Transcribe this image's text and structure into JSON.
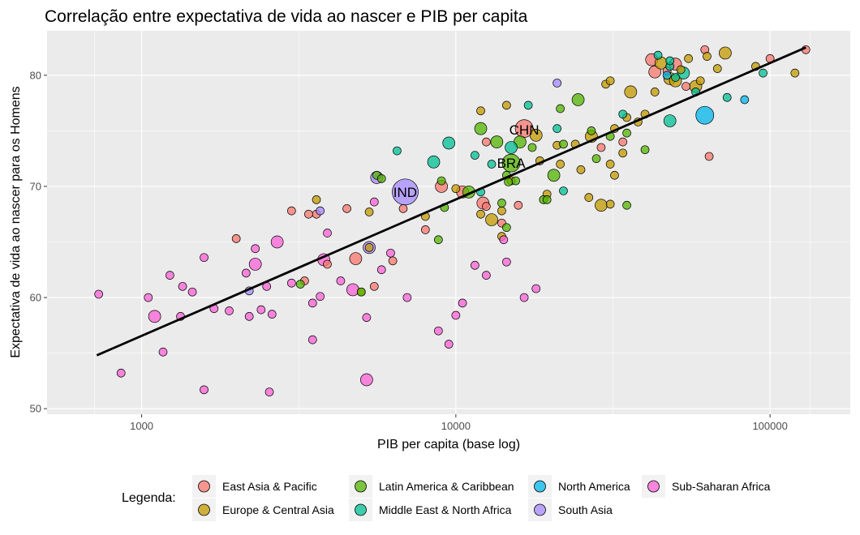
{
  "chart_data": {
    "type": "scatter",
    "title": "Correlação entre expectativa de vida ao nascer e PIB per capita",
    "xlabel": "PIB per capita (base log)",
    "ylabel": "Expectativa de vida ao nascer para os Homens",
    "x_scale": "log10",
    "xlim": [
      500,
      180000
    ],
    "ylim": [
      49.5,
      84
    ],
    "x_ticks": [
      1000,
      10000,
      100000
    ],
    "x_tick_labels": [
      "1000",
      "10000",
      "100000"
    ],
    "y_ticks": [
      50,
      60,
      70,
      80
    ],
    "y_tick_labels": [
      "50",
      "60",
      "70",
      "80"
    ],
    "grid": true,
    "legend": {
      "title": "Legenda:",
      "position": "bottom",
      "entries": [
        {
          "name": "East Asia & Pacific",
          "color": "#F8766D"
        },
        {
          "name": "Europe & Central Asia",
          "color": "#C49A00"
        },
        {
          "name": "Latin America & Caribbean",
          "color": "#53B400"
        },
        {
          "name": "Middle East & North Africa",
          "color": "#00C094"
        },
        {
          "name": "North America",
          "color": "#00B6EB"
        },
        {
          "name": "South Asia",
          "color": "#A58AFF"
        },
        {
          "name": "Sub-Saharan Africa",
          "color": "#FB61D7"
        }
      ]
    },
    "trend_line": {
      "x": [
        720,
        130000
      ],
      "y": [
        54.8,
        82.5
      ]
    },
    "labels": [
      {
        "text": "CHN",
        "x": 16500,
        "y": 75.1
      },
      {
        "text": "BRA",
        "x": 15000,
        "y": 72.1
      },
      {
        "text": "IND",
        "x": 6900,
        "y": 69.5
      }
    ],
    "series": [
      {
        "name": "East Asia & Pacific",
        "points": [
          [
            16500,
            75.2,
            3
          ],
          [
            12200,
            68.5,
            2
          ],
          [
            9000,
            70,
            2
          ],
          [
            10500,
            69.5,
            2
          ],
          [
            4800,
            63.5,
            2
          ],
          [
            4500,
            68,
            1
          ],
          [
            3900,
            63,
            1
          ],
          [
            3600,
            67.5,
            1
          ],
          [
            2000,
            65.3,
            1
          ],
          [
            3400,
            67.5,
            1
          ],
          [
            3300,
            61.5,
            1
          ],
          [
            3000,
            67.8,
            1
          ],
          [
            12500,
            74,
            1
          ],
          [
            5500,
            61,
            1
          ],
          [
            6300,
            63.3,
            1
          ],
          [
            6800,
            68,
            1
          ],
          [
            29000,
            73.5,
            1
          ],
          [
            34000,
            74,
            1
          ],
          [
            42000,
            81.4,
            2
          ],
          [
            43000,
            80.3,
            2
          ],
          [
            50000,
            81,
            2
          ],
          [
            62000,
            82.3,
            1
          ],
          [
            64000,
            72.7,
            1
          ],
          [
            100000,
            81.5,
            1
          ],
          [
            130000,
            82.3,
            1
          ],
          [
            54000,
            79,
            1
          ],
          [
            47000,
            80.4,
            1
          ],
          [
            15800,
            68.3,
            1
          ],
          [
            12500,
            68.2,
            1
          ],
          [
            14000,
            66.7,
            1
          ],
          [
            8000,
            66.1,
            1
          ]
        ]
      },
      {
        "name": "Europe & Central Asia",
        "points": [
          [
            18000,
            74.6,
            2
          ],
          [
            27000,
            74.5,
            2
          ],
          [
            29000,
            68.3,
            2
          ],
          [
            32000,
            75.2,
            1
          ],
          [
            34000,
            73,
            1
          ],
          [
            36000,
            78.5,
            2
          ],
          [
            43000,
            78.5,
            1
          ],
          [
            45000,
            81.1,
            2
          ],
          [
            48000,
            79.7,
            2
          ],
          [
            50000,
            79.5,
            2
          ],
          [
            52000,
            80.5,
            1
          ],
          [
            55000,
            81.5,
            1
          ],
          [
            58000,
            79,
            2
          ],
          [
            60000,
            79.5,
            1
          ],
          [
            63000,
            81.7,
            1
          ],
          [
            68000,
            80.6,
            1
          ],
          [
            72000,
            82,
            2
          ],
          [
            90000,
            80.8,
            1
          ],
          [
            120000,
            80.2,
            1
          ],
          [
            30000,
            79.2,
            1
          ],
          [
            31000,
            79.5,
            1
          ],
          [
            25000,
            71.5,
            1
          ],
          [
            21000,
            73.7,
            1
          ],
          [
            26500,
            69,
            1
          ],
          [
            15000,
            70.5,
            1
          ],
          [
            14500,
            77.3,
            1
          ],
          [
            12000,
            76.8,
            1
          ],
          [
            12000,
            67.5,
            1
          ],
          [
            13000,
            67,
            2
          ],
          [
            14000,
            67.8,
            1
          ],
          [
            14000,
            65.5,
            1
          ],
          [
            8000,
            67.3,
            1
          ],
          [
            10000,
            69.8,
            1
          ],
          [
            5300,
            67.7,
            1
          ],
          [
            3600,
            68.8,
            1
          ],
          [
            5300,
            64.5,
            1
          ],
          [
            5000,
            60.5,
            1
          ],
          [
            18500,
            72.3,
            1
          ],
          [
            19500,
            69.3,
            1
          ],
          [
            21500,
            72,
            1
          ],
          [
            24000,
            73.8,
            1
          ],
          [
            31000,
            72,
            1
          ],
          [
            32000,
            71,
            1
          ],
          [
            40000,
            76.5,
            1
          ],
          [
            38000,
            75.8,
            1
          ],
          [
            35000,
            76.2,
            1
          ],
          [
            31000,
            68.4,
            1
          ]
        ]
      },
      {
        "name": "Latin America & Caribbean",
        "points": [
          [
            15000,
            72.1,
            3
          ],
          [
            20500,
            71,
            2
          ],
          [
            16000,
            74,
            2
          ],
          [
            13500,
            74,
            2
          ],
          [
            15500,
            70.5,
            1
          ],
          [
            14500,
            71,
            1
          ],
          [
            14700,
            70.4,
            1
          ],
          [
            11000,
            69.5,
            2
          ],
          [
            9000,
            70.5,
            1
          ],
          [
            9200,
            68.1,
            1
          ],
          [
            8800,
            65.2,
            1
          ],
          [
            5600,
            71,
            1
          ],
          [
            5800,
            70.7,
            1
          ],
          [
            12000,
            75.2,
            2
          ],
          [
            14000,
            68.5,
            1
          ],
          [
            14500,
            66.3,
            1
          ],
          [
            17500,
            73.5,
            1
          ],
          [
            19000,
            68.8,
            1
          ],
          [
            19500,
            68.8,
            1
          ],
          [
            22000,
            73.8,
            1
          ],
          [
            24500,
            77.8,
            2
          ],
          [
            27000,
            75,
            1
          ],
          [
            31000,
            74.5,
            1
          ],
          [
            35000,
            68.3,
            1
          ],
          [
            35000,
            74.8,
            1
          ],
          [
            40000,
            73.3,
            1
          ],
          [
            3200,
            61.2,
            1
          ],
          [
            5000,
            60.5,
            1
          ],
          [
            21500,
            77,
            1
          ],
          [
            28000,
            72.5,
            1
          ]
        ]
      },
      {
        "name": "Middle East & North Africa",
        "points": [
          [
            15000,
            73.5,
            2
          ],
          [
            12000,
            69.5,
            1
          ],
          [
            13000,
            72,
            1
          ],
          [
            8500,
            72.2,
            2
          ],
          [
            6500,
            73.2,
            1
          ],
          [
            9500,
            73.9,
            2
          ],
          [
            11500,
            72.8,
            1
          ],
          [
            17000,
            77.3,
            1
          ],
          [
            21000,
            75.2,
            1
          ],
          [
            22000,
            69.6,
            1
          ],
          [
            34000,
            76.5,
            1
          ],
          [
            48000,
            75.9,
            2
          ],
          [
            53000,
            80.2,
            2
          ],
          [
            50000,
            79.8,
            1
          ],
          [
            48000,
            80.8,
            1
          ],
          [
            58000,
            78.5,
            1
          ],
          [
            73000,
            78,
            1
          ],
          [
            95000,
            80.2,
            1
          ],
          [
            44000,
            81.8,
            1
          ],
          [
            48000,
            81.3,
            1
          ]
        ]
      },
      {
        "name": "North America",
        "points": [
          [
            62000,
            76.4,
            3
          ],
          [
            47000,
            80,
            1
          ],
          [
            83000,
            77.8,
            1
          ]
        ]
      },
      {
        "name": "South Asia",
        "points": [
          [
            6900,
            69.5,
            4
          ],
          [
            5300,
            64.5,
            2
          ],
          [
            5600,
            70.8,
            2
          ],
          [
            3700,
            67.8,
            1
          ],
          [
            2200,
            60.6,
            1
          ],
          [
            21000,
            79.3,
            1
          ]
        ]
      },
      {
        "name": "Sub-Saharan Africa",
        "points": [
          [
            1100,
            58.3,
            2
          ],
          [
            1230,
            62,
            1
          ],
          [
            1330,
            58.3,
            1
          ],
          [
            1450,
            60.5,
            1
          ],
          [
            1580,
            63.6,
            1
          ],
          [
            1700,
            59,
            1
          ],
          [
            1900,
            58.8,
            1
          ],
          [
            2200,
            58.3,
            1
          ],
          [
            2300,
            63,
            2
          ],
          [
            2500,
            61,
            1
          ],
          [
            2600,
            58.5,
            1
          ],
          [
            2700,
            65,
            2
          ],
          [
            3500,
            59.5,
            1
          ],
          [
            3700,
            60.1,
            1
          ],
          [
            3800,
            63.4,
            2
          ],
          [
            3900,
            65.8,
            1
          ],
          [
            4300,
            61.5,
            1
          ],
          [
            4700,
            60.7,
            2
          ],
          [
            5200,
            52.6,
            2
          ],
          [
            5800,
            62.5,
            1
          ],
          [
            6200,
            64,
            1
          ],
          [
            7000,
            60,
            1
          ],
          [
            8800,
            57,
            1
          ],
          [
            11500,
            62.9,
            1
          ],
          [
            12500,
            62,
            1
          ],
          [
            14200,
            65.2,
            1
          ],
          [
            14500,
            63.2,
            1
          ],
          [
            16500,
            60,
            1
          ],
          [
            1170,
            55.1,
            1
          ],
          [
            730,
            60.3,
            1
          ],
          [
            860,
            53.2,
            1
          ],
          [
            1580,
            51.7,
            1
          ],
          [
            2550,
            51.5,
            1
          ],
          [
            2300,
            64.4,
            1
          ],
          [
            2150,
            62.2,
            1
          ],
          [
            2400,
            58.9,
            1
          ],
          [
            1050,
            60,
            1
          ],
          [
            1350,
            61,
            1
          ],
          [
            3000,
            61.3,
            1
          ],
          [
            3500,
            56.2,
            1
          ],
          [
            5200,
            58.2,
            1
          ],
          [
            10500,
            59.5,
            1
          ],
          [
            9500,
            55.8,
            1
          ],
          [
            5500,
            68.6,
            1
          ],
          [
            18000,
            60.8,
            1
          ],
          [
            10000,
            58.4,
            1
          ]
        ]
      }
    ]
  }
}
